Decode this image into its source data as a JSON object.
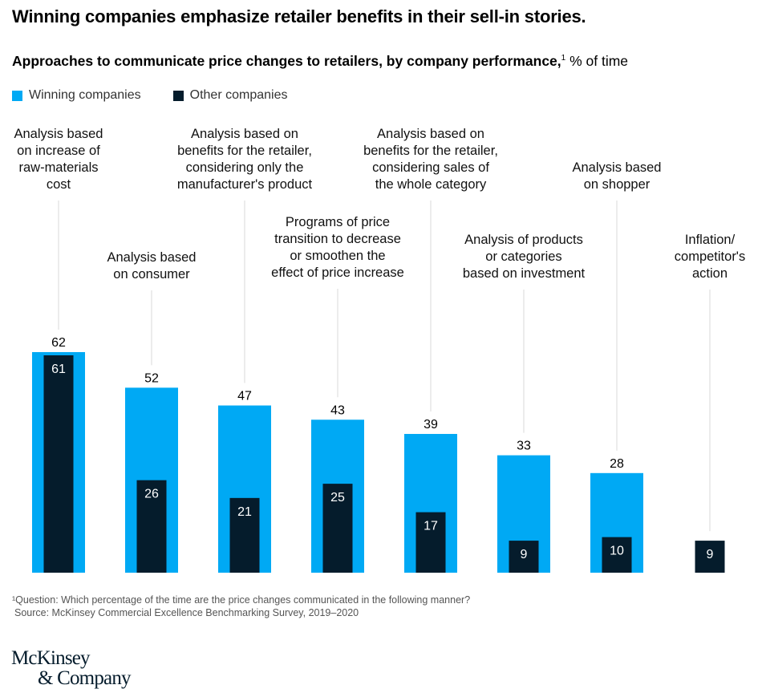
{
  "title": "Winning companies emphasize retailer benefits in their sell-in stories.",
  "subtitle": {
    "bold": "Approaches to communicate price changes to retailers, by company performance,",
    "footnote_mark": "1",
    "unit": " % of time"
  },
  "colors": {
    "winning": "#00A9F4",
    "other": "#051C2C",
    "leader": "#d8d8d8"
  },
  "chart_data": {
    "type": "bar",
    "categories": [
      "Analysis based on increase of raw-materials cost",
      "Analysis based on consumer",
      "Analysis based on benefits for the retailer, considering only the manufacturer's product",
      "Programs of price transition to decrease or smoothen the effect of price increase",
      "Analysis based on benefits for the retailer, considering sales of the whole category",
      "Analysis of products or categories based on investment",
      "Analysis based on shopper",
      "Inflation/ competitor's action"
    ],
    "category_lines": [
      [
        "Analysis based",
        "on increase of",
        "raw-materials",
        "cost"
      ],
      [
        "Analysis based",
        "on consumer"
      ],
      [
        "Analysis based on",
        "benefits for the retailer,",
        "considering only the",
        "manufacturer's product"
      ],
      [
        "Programs of price",
        "transition to decrease",
        "or smoothen the",
        "effect of price increase"
      ],
      [
        "Analysis based on",
        "benefits for the retailer,",
        "considering sales of",
        "the whole category"
      ],
      [
        "Analysis of products",
        "or categories",
        "based on investment"
      ],
      [
        "Analysis based",
        "on shopper"
      ],
      [
        "Inflation/",
        "competitor's",
        "action"
      ]
    ],
    "series": [
      {
        "name": "Winning companies",
        "values": [
          62,
          52,
          47,
          43,
          39,
          33,
          28,
          null
        ]
      },
      {
        "name": "Other companies",
        "values": [
          61,
          26,
          21,
          25,
          17,
          9,
          10,
          9
        ]
      }
    ],
    "ylim": [
      0,
      62
    ],
    "legend": "top-left",
    "grid": false
  },
  "footnote": "¹Question: Which percentage of the time are the price changes communicated in the following manner?",
  "source": "Source: McKinsey Commercial Excellence Benchmarking Survey, 2019–2020",
  "logo": {
    "line1": "McKinsey",
    "line2": "& Company"
  }
}
